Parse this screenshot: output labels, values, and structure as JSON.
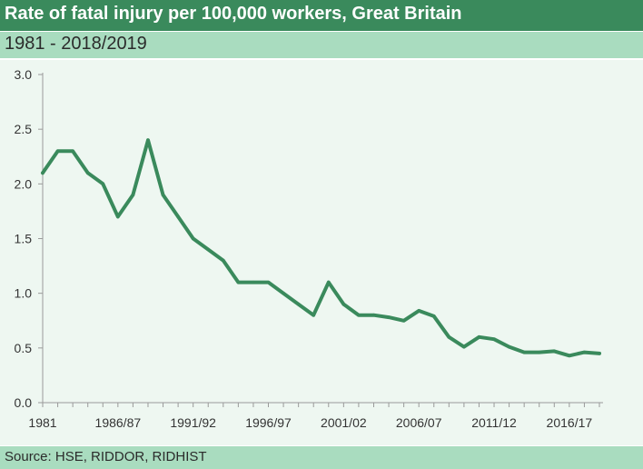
{
  "header": {
    "title": "Rate of fatal injury per 100,000 workers, Great Britain",
    "subtitle": "1981 - 2018/2019"
  },
  "footer": {
    "source": "Source: HSE, RIDDOR, RIDHIST"
  },
  "colors": {
    "title_bar": "#3a8a5c",
    "band": "#a9dcbf",
    "plot_background": "#eef7f1",
    "line": "#3a8a5c",
    "axis": "#9a9a9a"
  },
  "chart_data": {
    "type": "line",
    "title": "Rate of fatal injury per 100,000 workers, Great Britain",
    "subtitle": "1981 - 2018/2019",
    "xlabel": "",
    "ylabel": "",
    "ylim": [
      0,
      3.0
    ],
    "yticks": [
      "0.0",
      "0.5",
      "1.0",
      "1.5",
      "2.0",
      "2.5",
      "3.0"
    ],
    "grid": false,
    "legend": "none",
    "x_tick_labels": [
      "1981",
      "1986/87",
      "1991/92",
      "1996/97",
      "2001/02",
      "2006/07",
      "2011/12",
      "2016/17"
    ],
    "x_tick_indices": [
      0,
      5,
      10,
      15,
      20,
      25,
      30,
      35
    ],
    "series": [
      {
        "values": [
          2.1,
          2.3,
          2.3,
          2.1,
          2.0,
          1.7,
          1.9,
          2.4,
          1.9,
          1.7,
          1.5,
          1.4,
          1.3,
          1.1,
          1.1,
          1.1,
          1.0,
          0.9,
          0.8,
          1.1,
          0.9,
          0.8,
          0.8,
          0.78,
          0.75,
          0.84,
          0.79,
          0.6,
          0.51,
          0.6,
          0.58,
          0.51,
          0.46,
          0.46,
          0.47,
          0.43,
          0.46,
          0.45
        ]
      }
    ]
  }
}
